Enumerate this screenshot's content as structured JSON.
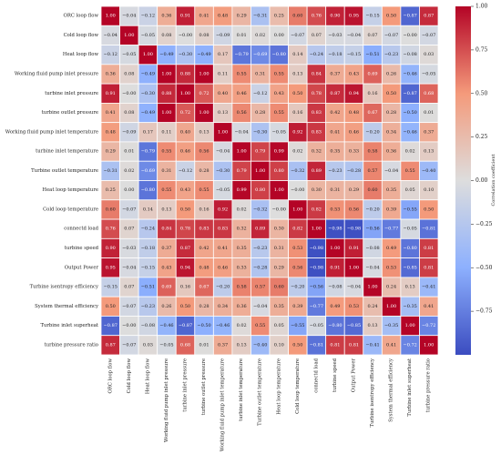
{
  "chart_data": {
    "type": "heatmap",
    "title": "",
    "colorbar_label": "Correlation coefficient",
    "colorbar_range": [
      -1.0,
      1.0
    ],
    "colorbar_ticks": [
      1.0,
      0.75,
      0.5,
      0.25,
      0.0,
      -0.25,
      -0.5,
      -0.75
    ],
    "colorbar_tick_labels": [
      "1.00",
      "0.75",
      "0.50",
      "0.25",
      "0.00",
      "−0.25",
      "−0.50",
      "−0.75"
    ],
    "colors": {
      "low": "#3b4cc0",
      "mid": "#dddddd",
      "high": "#b40426"
    },
    "labels": [
      "ORC loop flow",
      "Cold loop flow",
      "Heat loop flow",
      "Working fluid pump inlet pressure",
      "turbine inlet pressure",
      "turbine outlet pressure",
      "Working fluid pump inlet temperature",
      "turbine inlet temperature",
      "Turbine outlet temperature",
      "Heat loop temperature",
      "Cold loop temperature",
      "connectd load",
      "turbine speed",
      "Output Power",
      "Turbine isentropy efficiency",
      "System thermal efficiency",
      "Turbine inlet superheat",
      "turbine pressure ratio"
    ],
    "values": [
      [
        1.0,
        -0.04,
        -0.12,
        0.36,
        0.91,
        0.41,
        0.48,
        0.29,
        -0.31,
        0.25,
        0.6,
        0.76,
        0.9,
        0.95,
        -0.15,
        0.5,
        -0.87,
        0.87
      ],
      [
        -0.04,
        1.0,
        -0.05,
        0.08,
        -0.0,
        0.08,
        -0.09,
        0.01,
        0.02,
        0.0,
        -0.07,
        0.07,
        -0.03,
        -0.04,
        0.07,
        -0.07,
        -0.0,
        -0.07
      ],
      [
        -0.12,
        -0.05,
        1.0,
        -0.49,
        -0.3,
        -0.49,
        0.17,
        -0.79,
        -0.69,
        -0.8,
        0.14,
        -0.24,
        -0.18,
        -0.15,
        -0.51,
        -0.23,
        -0.08,
        0.03
      ],
      [
        0.36,
        0.08,
        -0.49,
        1.0,
        0.88,
        1.0,
        0.11,
        0.55,
        0.31,
        0.55,
        0.13,
        0.84,
        0.37,
        0.43,
        0.69,
        0.26,
        -0.46,
        -0.05
      ],
      [
        0.91,
        -0.0,
        -0.3,
        0.88,
        1.0,
        0.72,
        0.4,
        0.46,
        -0.12,
        0.43,
        0.5,
        0.78,
        0.87,
        0.94,
        0.16,
        0.5,
        -0.87,
        0.68
      ],
      [
        0.41,
        0.08,
        -0.49,
        1.0,
        0.72,
        1.0,
        0.13,
        0.56,
        0.28,
        0.55,
        0.16,
        0.83,
        0.42,
        0.48,
        0.67,
        0.28,
        -0.5,
        0.01
      ],
      [
        0.48,
        -0.09,
        0.17,
        0.11,
        0.4,
        0.13,
        1.0,
        -0.04,
        -0.3,
        -0.05,
        0.92,
        0.83,
        0.41,
        0.46,
        -0.2,
        0.34,
        -0.46,
        0.37
      ],
      [
        0.29,
        0.01,
        -0.79,
        0.55,
        0.46,
        0.56,
        -0.04,
        1.0,
        0.79,
        0.99,
        0.02,
        0.32,
        0.35,
        0.33,
        0.58,
        0.36,
        0.02,
        0.13
      ],
      [
        -0.31,
        0.02,
        -0.69,
        0.31,
        -0.12,
        0.28,
        -0.3,
        0.79,
        1.0,
        0.8,
        -0.32,
        0.89,
        -0.23,
        -0.28,
        0.57,
        -0.04,
        0.55,
        -0.4
      ],
      [
        0.25,
        0.0,
        -0.8,
        0.55,
        0.43,
        0.55,
        -0.05,
        0.99,
        0.8,
        1.0,
        -0.0,
        0.3,
        0.31,
        0.29,
        0.6,
        0.35,
        0.05,
        0.1
      ],
      [
        0.6,
        -0.07,
        0.14,
        0.13,
        0.5,
        0.16,
        0.92,
        0.02,
        -0.32,
        -0.0,
        1.0,
        0.82,
        0.53,
        0.56,
        -0.2,
        0.39,
        -0.55,
        0.5
      ],
      [
        0.76,
        0.07,
        -0.24,
        0.84,
        0.78,
        0.83,
        0.83,
        0.32,
        0.89,
        0.3,
        0.82,
        1.0,
        -0.98,
        -0.98,
        -0.56,
        -0.77,
        -0.05,
        -0.81
      ],
      [
        0.9,
        -0.03,
        -0.18,
        0.37,
        0.87,
        0.42,
        0.41,
        0.35,
        -0.23,
        0.31,
        0.53,
        -0.98,
        1.0,
        0.91,
        -0.08,
        0.49,
        -0.8,
        0.81
      ],
      [
        0.95,
        -0.04,
        -0.15,
        0.43,
        0.94,
        0.48,
        0.46,
        0.33,
        -0.28,
        0.29,
        0.56,
        -0.98,
        0.91,
        1.0,
        -0.04,
        0.53,
        -0.85,
        0.81
      ],
      [
        -0.15,
        0.07,
        -0.51,
        0.69,
        0.16,
        0.67,
        -0.2,
        0.58,
        0.57,
        0.6,
        -0.2,
        -0.56,
        -0.08,
        -0.04,
        1.0,
        0.24,
        0.13,
        -0.41
      ],
      [
        0.5,
        -0.07,
        -0.23,
        0.26,
        0.5,
        0.28,
        0.34,
        0.36,
        -0.04,
        0.35,
        0.39,
        -0.77,
        0.49,
        0.53,
        0.24,
        1.0,
        -0.35,
        0.41
      ],
      [
        -0.87,
        -0.0,
        -0.08,
        -0.46,
        -0.87,
        -0.5,
        -0.46,
        0.02,
        0.55,
        0.05,
        -0.55,
        -0.05,
        -0.8,
        -0.85,
        0.13,
        -0.35,
        1.0,
        -0.72
      ],
      [
        0.87,
        -0.07,
        0.03,
        -0.05,
        0.68,
        0.01,
        0.37,
        0.13,
        -0.4,
        0.1,
        0.5,
        -0.81,
        0.81,
        0.81,
        -0.41,
        0.41,
        -0.72,
        1.0
      ]
    ]
  }
}
